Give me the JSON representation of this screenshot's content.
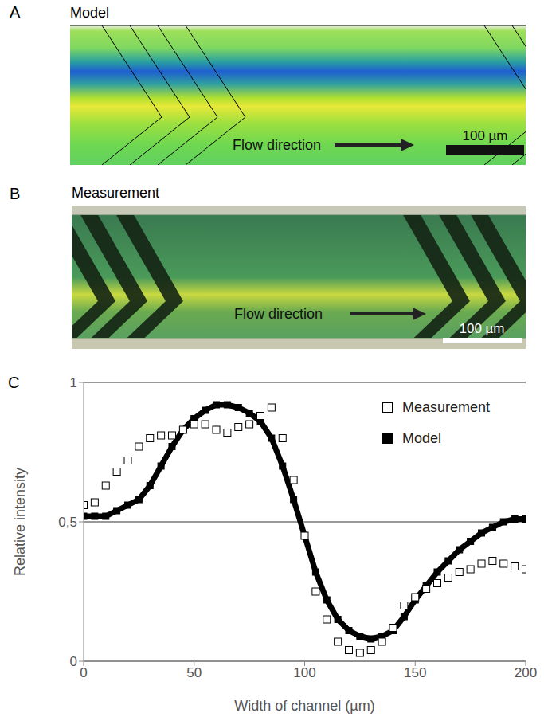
{
  "panel_a": {
    "letter": "A",
    "title": "Model",
    "arrow_label": "Flow direction",
    "scale_bar": "100 µm"
  },
  "panel_b": {
    "letter": "B",
    "title": "Measurement",
    "arrow_label": "Flow direction",
    "scale_bar": "100 µm"
  },
  "panel_c": {
    "letter": "C"
  },
  "chart_data": {
    "type": "line",
    "xlabel": "Width of channel (µm)",
    "ylabel": "Relative intensity",
    "x": [
      0,
      5,
      10,
      15,
      20,
      25,
      30,
      35,
      40,
      45,
      50,
      55,
      60,
      65,
      70,
      75,
      80,
      85,
      90,
      95,
      100,
      105,
      110,
      115,
      120,
      125,
      130,
      135,
      140,
      145,
      150,
      155,
      160,
      165,
      170,
      175,
      180,
      185,
      190,
      195,
      200
    ],
    "series": [
      {
        "name": "Measurement",
        "color": "#000000",
        "marker": "square",
        "line_style": "none",
        "values": [
          0.56,
          0.57,
          0.63,
          0.68,
          0.72,
          0.77,
          0.8,
          0.81,
          0.81,
          0.83,
          0.85,
          0.85,
          0.83,
          0.82,
          0.84,
          0.85,
          0.88,
          0.91,
          0.8,
          0.65,
          0.45,
          0.25,
          0.15,
          0.07,
          0.04,
          0.03,
          0.04,
          0.07,
          0.12,
          0.2,
          0.23,
          0.26,
          0.28,
          0.3,
          0.32,
          0.33,
          0.35,
          0.36,
          0.35,
          0.34,
          0.33
        ]
      },
      {
        "name": "Model",
        "color": "#000000",
        "marker": "square",
        "line_style": "solid",
        "values": [
          0.52,
          0.52,
          0.52,
          0.54,
          0.56,
          0.58,
          0.63,
          0.7,
          0.77,
          0.83,
          0.87,
          0.9,
          0.92,
          0.92,
          0.91,
          0.89,
          0.86,
          0.8,
          0.7,
          0.58,
          0.45,
          0.32,
          0.22,
          0.15,
          0.11,
          0.09,
          0.08,
          0.09,
          0.11,
          0.16,
          0.22,
          0.27,
          0.32,
          0.36,
          0.4,
          0.43,
          0.46,
          0.48,
          0.5,
          0.51,
          0.51
        ]
      }
    ],
    "xlim": [
      0,
      200
    ],
    "xticks": [
      0,
      50,
      100,
      150,
      200
    ],
    "ylim": [
      0,
      1
    ],
    "yticks": [
      0,
      {
        "value": 0.5,
        "label": "0,5"
      },
      1
    ],
    "grid": true,
    "legend": "upper right"
  }
}
